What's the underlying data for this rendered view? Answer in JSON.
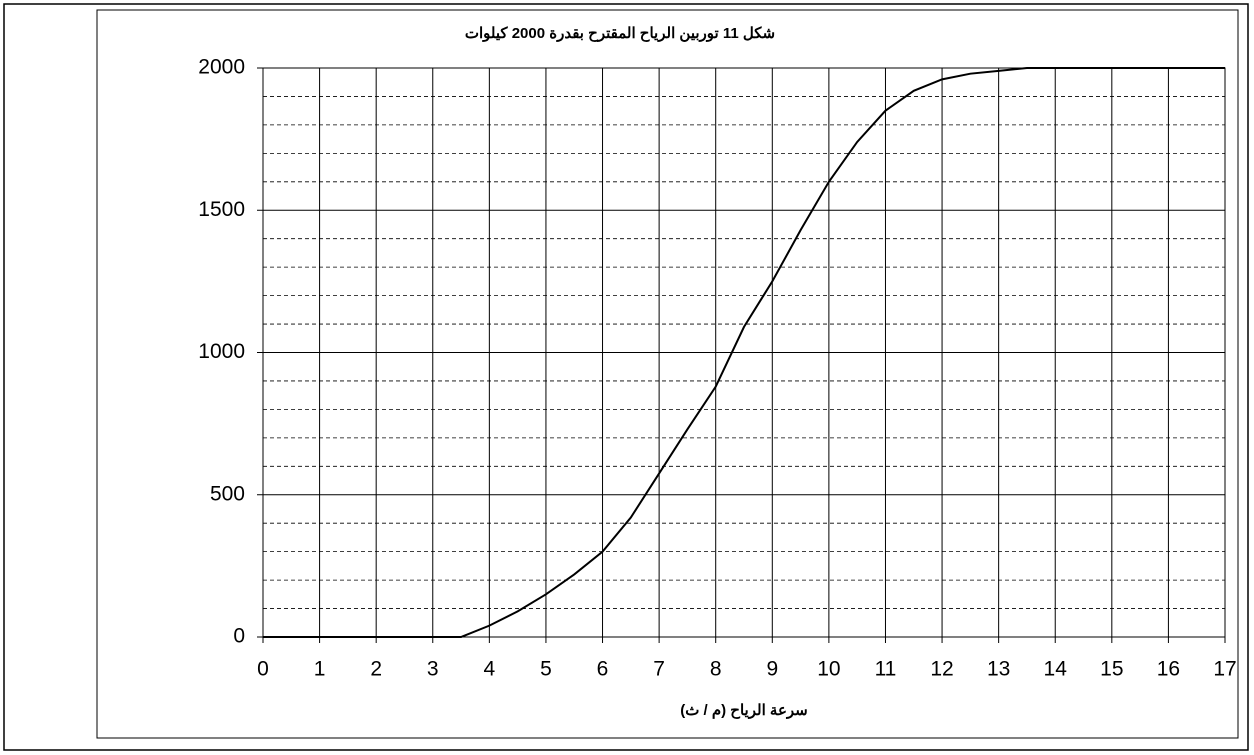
{
  "chart_data": {
    "type": "line",
    "title": "شكل 11 توربين الرياح المقترح بقدرة 2000 كيلوات",
    "x_label": "سرعة الرياح (م / ث)",
    "x": [
      0,
      1,
      2,
      3,
      3.5,
      4,
      4.5,
      5,
      5.5,
      6,
      6.5,
      7,
      7.5,
      8,
      8.5,
      9,
      9.5,
      10,
      10.5,
      11,
      11.5,
      12,
      12.5,
      13,
      13.5,
      14,
      15,
      16,
      17
    ],
    "series": [
      {
        "color": "#000000",
        "values": [
          0,
          0,
          0,
          0,
          0,
          40,
          90,
          150,
          220,
          300,
          420,
          575,
          730,
          880,
          1090,
          1250,
          1430,
          1600,
          1740,
          1850,
          1920,
          1960,
          1980,
          1990,
          2000,
          2000,
          2000,
          2000,
          2000
        ]
      }
    ],
    "xlim": [
      0,
      17
    ],
    "xticks": [
      0,
      1,
      2,
      3,
      4,
      5,
      6,
      7,
      8,
      9,
      10,
      11,
      12,
      13,
      14,
      15,
      16,
      17
    ],
    "ylim": [
      0,
      2000
    ],
    "yticks": [
      0,
      500,
      1000,
      1500,
      2000
    ],
    "yminor": [
      100,
      200,
      300,
      400,
      600,
      700,
      800,
      900,
      1100,
      1200,
      1300,
      1400,
      1600,
      1700,
      1800,
      1900
    ],
    "grid": true
  }
}
